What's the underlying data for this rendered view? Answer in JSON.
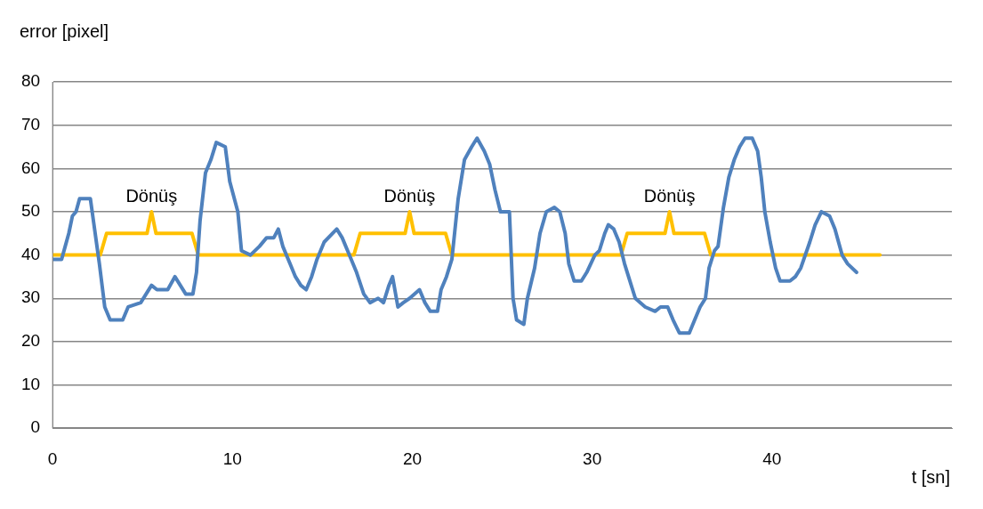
{
  "chart_data": {
    "type": "line",
    "xlabel": "t [sn]",
    "ylabel": "error [pixel]",
    "xlim": [
      0,
      50
    ],
    "xticks": [
      0,
      10,
      20,
      30,
      40
    ],
    "ylim": [
      0,
      80
    ],
    "yticks": [
      0,
      10,
      20,
      30,
      40,
      50,
      60,
      70,
      80
    ],
    "grid": "y",
    "legend": false,
    "marker": "none",
    "line_style": "solid",
    "series": [
      {
        "color": "#4f81bd",
        "x": [
          0,
          0.5,
          0.7,
          0.9,
          1.1,
          1.3,
          1.5,
          2.1,
          2.3,
          2.6,
          2.9,
          3.2,
          3.9,
          4.2,
          4.9,
          5.5,
          5.8,
          6.4,
          6.8,
          7.1,
          7.4,
          7.8,
          8.0,
          8.2,
          8.5,
          8.8,
          9.1,
          9.6,
          9.85,
          10.3,
          10.5,
          11,
          11.5,
          11.9,
          12.3,
          12.55,
          12.8,
          13.2,
          13.5,
          13.8,
          14.1,
          14.4,
          14.7,
          15.1,
          15.8,
          16.1,
          16.5,
          16.9,
          17.3,
          17.65,
          18.1,
          18.4,
          18.7,
          18.9,
          19.2,
          19.5,
          19.85,
          20.4,
          20.7,
          21,
          21.4,
          21.6,
          21.9,
          22.2,
          22.55,
          22.9,
          23.3,
          23.6,
          24,
          24.3,
          24.6,
          24.9,
          25.4,
          25.6,
          25.8,
          26.2,
          26.4,
          26.8,
          27.1,
          27.45,
          27.9,
          28.2,
          28.5,
          28.7,
          29,
          29.4,
          29.7,
          30.15,
          30.4,
          30.7,
          30.9,
          31.2,
          31.5,
          31.8,
          32.1,
          32.4,
          32.95,
          33.5,
          33.8,
          34.2,
          34.5,
          34.85,
          35.4,
          35.7,
          36,
          36.3,
          36.5,
          36.8,
          37,
          37.3,
          37.6,
          37.9,
          38.2,
          38.5,
          38.9,
          39.2,
          39.4,
          39.6,
          39.9,
          40.2,
          40.45,
          41,
          41.3,
          41.6,
          42.1,
          42.4,
          42.75,
          43.2,
          43.5,
          43.9,
          44.2,
          44.7
        ],
        "values": [
          39,
          39,
          42,
          45,
          49,
          50,
          53,
          53,
          47,
          38,
          28,
          25,
          25,
          28,
          29,
          33,
          32,
          32,
          35,
          33,
          31,
          31,
          36,
          48,
          59,
          62,
          66,
          65,
          57,
          50,
          41,
          40,
          42,
          44,
          44,
          46,
          42,
          38,
          35,
          33,
          32,
          35,
          39,
          43,
          46,
          44,
          40,
          36,
          31,
          29,
          30,
          29,
          33,
          35,
          28,
          29,
          30,
          32,
          29,
          27,
          27,
          32,
          35,
          39,
          53,
          62,
          65,
          67,
          64,
          61,
          55,
          50,
          50,
          30,
          25,
          24,
          30,
          37,
          45,
          50,
          51,
          50,
          45,
          38,
          34,
          34,
          36,
          40,
          41,
          45,
          47,
          46,
          43,
          38,
          34,
          30,
          28,
          27,
          28,
          28,
          25,
          22,
          22,
          25,
          28,
          30,
          37,
          41,
          42,
          51,
          58,
          62,
          65,
          67,
          67,
          64,
          58,
          50,
          43,
          37,
          34,
          34,
          35,
          37,
          43,
          47,
          50,
          49,
          46,
          40,
          38,
          36
        ]
      },
      {
        "color": "#ffc000",
        "x": [
          0,
          2.65,
          3.0,
          5.25,
          5.5,
          5.75,
          7.75,
          8.1,
          16.75,
          17.1,
          19.6,
          19.85,
          20.1,
          21.85,
          22.2,
          31.6,
          31.95,
          34.05,
          34.3,
          34.55,
          36.25,
          36.6,
          46
        ],
        "values": [
          40,
          40,
          45,
          45,
          50,
          45,
          45,
          40,
          40,
          45,
          45,
          50,
          45,
          45,
          40,
          40,
          45,
          45,
          50,
          45,
          45,
          40,
          40
        ]
      }
    ],
    "annotations": [
      {
        "text": "Dönüş",
        "x": 5.5,
        "y": 50
      },
      {
        "text": "Dönüş",
        "x": 19.85,
        "y": 50
      },
      {
        "text": "Dönüş",
        "x": 34.3,
        "y": 50
      }
    ]
  }
}
